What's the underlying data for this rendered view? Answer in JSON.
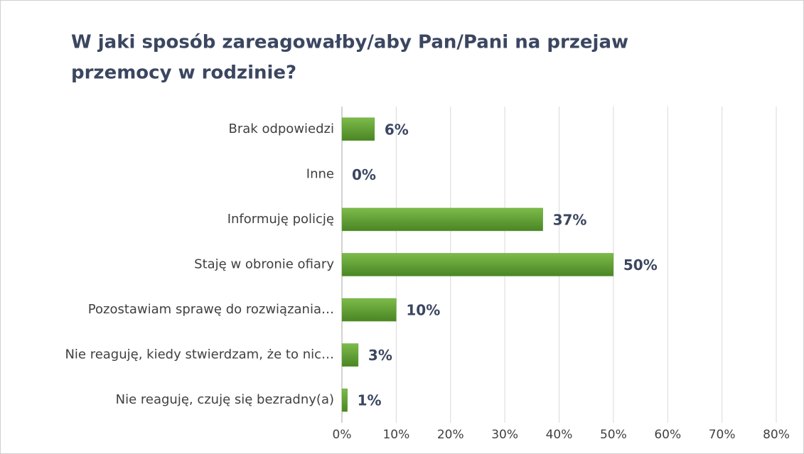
{
  "chart_data": {
    "type": "bar",
    "orientation": "horizontal",
    "title_lines": [
      "W jaki sposób zareagowałby/aby Pan/Pani na przejaw",
      "przemocy w rodzinie?"
    ],
    "categories": [
      "Brak odpowiedzi",
      "Inne",
      "Informuję policję",
      "Staję w obronie ofiary",
      "Pozostawiam sprawę do rozwiązania…",
      "Nie reaguję, kiedy stwierdzam, że to nic…",
      "Nie reaguję, czuję się bezradny(a)"
    ],
    "values": [
      6,
      0,
      37,
      50,
      10,
      3,
      1
    ],
    "value_labels": [
      "6%",
      "0%",
      "37%",
      "50%",
      "10%",
      "3%",
      "1%"
    ],
    "color": "#5c9c30",
    "xlim": [
      0,
      80
    ],
    "xticks": [
      {
        "value": 0,
        "label": "0%"
      },
      {
        "value": 10,
        "label": "10%"
      },
      {
        "value": 20,
        "label": "20%"
      },
      {
        "value": 30,
        "label": "30%"
      },
      {
        "value": 40,
        "label": "40%"
      },
      {
        "value": 50,
        "label": "50%"
      },
      {
        "value": 60,
        "label": "60%"
      },
      {
        "value": 70,
        "label": "70%"
      },
      {
        "value": 80,
        "label": "80%"
      }
    ],
    "grid": true
  }
}
